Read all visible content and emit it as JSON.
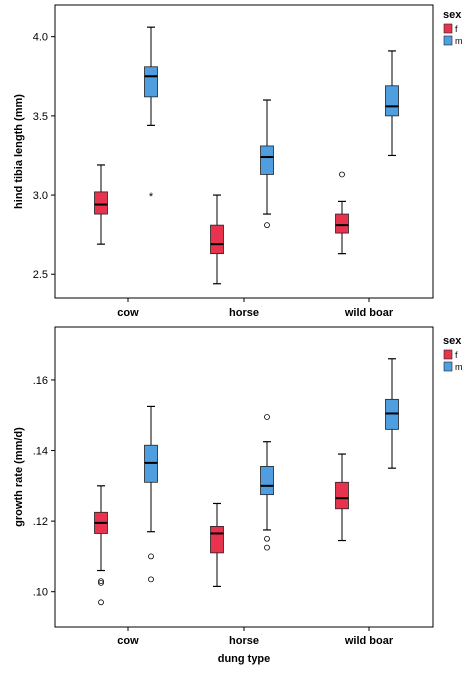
{
  "colors": {
    "f": "#e8334f",
    "m": "#4f9ee0",
    "frame": "#000000"
  },
  "chart_data": [
    {
      "type": "box",
      "xlabel": "",
      "ylabel": "hind tibia length (mm)",
      "categories": [
        "cow",
        "horse",
        "wild boar"
      ],
      "yticks": [
        2.5,
        3.0,
        3.5,
        4.0
      ],
      "ytick_labels": [
        "2.5",
        "3.0",
        "3.5",
        "4.0"
      ],
      "ylim": [
        2.35,
        4.2
      ],
      "legend": {
        "title": "sex",
        "position": "top-right",
        "entries": [
          "f",
          "m"
        ]
      },
      "series": [
        {
          "name": "f",
          "boxes": [
            {
              "category": "cow",
              "whisker_low": 2.69,
              "q1": 2.88,
              "median": 2.94,
              "q3": 3.02,
              "whisker_high": 3.19,
              "outliers": [],
              "extremes": []
            },
            {
              "category": "horse",
              "whisker_low": 2.44,
              "q1": 2.63,
              "median": 2.69,
              "q3": 2.81,
              "whisker_high": 3.0,
              "outliers": [],
              "extremes": []
            },
            {
              "category": "wild boar",
              "whisker_low": 2.63,
              "q1": 2.76,
              "median": 2.81,
              "q3": 2.88,
              "whisker_high": 2.96,
              "outliers": [
                3.13
              ],
              "extremes": []
            }
          ]
        },
        {
          "name": "m",
          "boxes": [
            {
              "category": "cow",
              "whisker_low": 3.44,
              "q1": 3.62,
              "median": 3.75,
              "q3": 3.81,
              "whisker_high": 4.06,
              "outliers": [],
              "extremes": [
                3.0
              ]
            },
            {
              "category": "horse",
              "whisker_low": 2.88,
              "q1": 3.13,
              "median": 3.24,
              "q3": 3.31,
              "whisker_high": 3.6,
              "outliers": [
                2.81
              ],
              "extremes": []
            },
            {
              "category": "wild boar",
              "whisker_low": 3.25,
              "q1": 3.5,
              "median": 3.56,
              "q3": 3.69,
              "whisker_high": 3.91,
              "outliers": [],
              "extremes": []
            }
          ]
        }
      ]
    },
    {
      "type": "box",
      "xlabel": "dung type",
      "ylabel": "growth rate (mm/d)",
      "categories": [
        "cow",
        "horse",
        "wild boar"
      ],
      "yticks": [
        0.1,
        0.12,
        0.14,
        0.16
      ],
      "ytick_labels": [
        ".10",
        ".12",
        ".14",
        ".16"
      ],
      "ylim": [
        0.09,
        0.175
      ],
      "legend": {
        "title": "sex",
        "position": "top-right",
        "entries": [
          "f",
          "m"
        ]
      },
      "series": [
        {
          "name": "f",
          "boxes": [
            {
              "category": "cow",
              "whisker_low": 0.106,
              "q1": 0.1165,
              "median": 0.1195,
              "q3": 0.1225,
              "whisker_high": 0.13,
              "outliers": [
                0.1025,
                0.103,
                0.097
              ],
              "extremes": []
            },
            {
              "category": "horse",
              "whisker_low": 0.1015,
              "q1": 0.111,
              "median": 0.1165,
              "q3": 0.1185,
              "whisker_high": 0.125,
              "outliers": [],
              "extremes": []
            },
            {
              "category": "wild boar",
              "whisker_low": 0.1145,
              "q1": 0.1235,
              "median": 0.1265,
              "q3": 0.131,
              "whisker_high": 0.139,
              "outliers": [],
              "extremes": []
            }
          ]
        },
        {
          "name": "m",
          "boxes": [
            {
              "category": "cow",
              "whisker_low": 0.117,
              "q1": 0.131,
              "median": 0.1365,
              "q3": 0.1415,
              "whisker_high": 0.1525,
              "outliers": [
                0.11,
                0.1035
              ],
              "extremes": []
            },
            {
              "category": "horse",
              "whisker_low": 0.1175,
              "q1": 0.1275,
              "median": 0.13,
              "q3": 0.1355,
              "whisker_high": 0.1425,
              "outliers": [
                0.1495,
                0.115,
                0.1125
              ],
              "extremes": []
            },
            {
              "category": "wild boar",
              "whisker_low": 0.135,
              "q1": 0.146,
              "median": 0.1505,
              "q3": 0.1545,
              "whisker_high": 0.166,
              "outliers": [],
              "extremes": []
            }
          ]
        }
      ]
    }
  ]
}
